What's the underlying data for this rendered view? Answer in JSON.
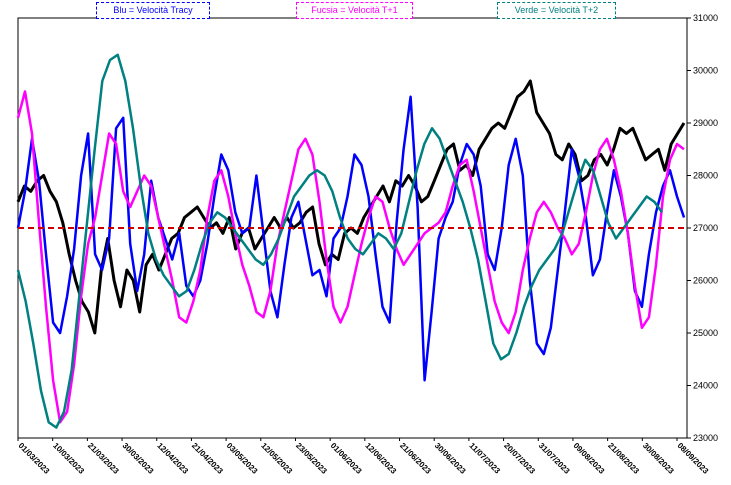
{
  "chart_data": {
    "type": "line",
    "legend": [
      {
        "label": "Blu = Velocità Tracy",
        "color": "#0000ff"
      },
      {
        "label": "Fucsia = Velocità T+1",
        "color": "#ff00ff"
      },
      {
        "label": "Verde = Velocità T+2",
        "color": "#008080"
      }
    ],
    "ylim": [
      23000,
      31000
    ],
    "yticks": [
      23000,
      24000,
      25000,
      26000,
      27000,
      28000,
      29000,
      30000,
      31000
    ],
    "reference_line": {
      "value": 27000,
      "color": "#cc0000",
      "style": "dashed"
    },
    "x_tick_labels": [
      "01/03/2023",
      "10/03/2023",
      "21/03/2023",
      "30/03/2023",
      "12/04/2023",
      "21/04/2023",
      "03/05/2023",
      "12/05/2023",
      "23/05/2023",
      "01/06/2023",
      "12/06/2023",
      "21/06/2023",
      "30/06/2023",
      "11/07/2023",
      "20/07/2023",
      "31/07/2023",
      "09/08/2023",
      "21/08/2023",
      "30/08/2023",
      "08/09/2023"
    ],
    "series": [
      {
        "color": "#000000",
        "values": [
          27500,
          27800,
          27700,
          27900,
          28000,
          27700,
          27500,
          27100,
          26500,
          26000,
          25600,
          25400,
          25000,
          26200,
          26800,
          26000,
          25500,
          26200,
          26000,
          25400,
          26300,
          26500,
          26200,
          26500,
          26800,
          26900,
          27200,
          27300,
          27400,
          27200,
          27000,
          27100,
          26900,
          27200,
          26600,
          26900,
          27000,
          26600,
          26800,
          27000,
          27200,
          27000,
          27200,
          27000,
          27100,
          27300,
          27400,
          26700,
          26300,
          26500,
          26400,
          26900,
          27000,
          26900,
          27200,
          27400,
          27600,
          27800,
          27500,
          27900,
          27800,
          28000,
          27800,
          27500,
          27600,
          27900,
          28200,
          28500,
          28600,
          28100,
          28200,
          28000,
          28500,
          28700,
          28900,
          29000,
          28900,
          29200,
          29500,
          29600,
          29800,
          29200,
          29000,
          28800,
          28400,
          28300,
          28600,
          28400,
          27900,
          28000,
          28300,
          28400,
          28200,
          28500,
          28900,
          28800,
          28900,
          28600,
          28300,
          28400,
          28500,
          28100,
          28600,
          28800,
          29000
        ]
      },
      {
        "color": "#0000ff",
        "values": [
          27000,
          27700,
          28700,
          27900,
          26500,
          25200,
          25000,
          25700,
          26600,
          28000,
          28800,
          26500,
          26200,
          26800,
          28900,
          29100,
          26700,
          25800,
          26500,
          27900,
          27200,
          26800,
          26400,
          26900,
          25900,
          25700,
          26000,
          26700,
          27600,
          28400,
          28100,
          27300,
          26900,
          27000,
          28000,
          26900,
          25800,
          25300,
          26300,
          27200,
          27500,
          26800,
          26100,
          26200,
          25700,
          26800,
          27000,
          27600,
          28400,
          28200,
          27600,
          26500,
          25500,
          25200,
          27100,
          28500,
          29500,
          27400,
          24100,
          25400,
          26800,
          27200,
          27500,
          28200,
          28600,
          28400,
          27800,
          26500,
          26200,
          27000,
          28200,
          28700,
          28000,
          26000,
          24800,
          24600,
          25100,
          26200,
          27300,
          28500,
          28000,
          27200,
          26100,
          26400,
          27300,
          28100,
          27600,
          26900,
          25800,
          25500,
          26500,
          27300,
          27800,
          28100,
          27600,
          27200
        ]
      },
      {
        "color": "#ff00ff",
        "values": [
          29100,
          29600,
          28800,
          27100,
          25500,
          24100,
          23300,
          23500,
          24400,
          25700,
          26700,
          27200,
          28000,
          28800,
          28600,
          27700,
          27400,
          27700,
          28000,
          27800,
          27200,
          26600,
          26000,
          25300,
          25200,
          25600,
          26200,
          27200,
          27900,
          28100,
          27600,
          26900,
          26300,
          25900,
          25400,
          25300,
          25800,
          26700,
          27300,
          27900,
          28500,
          28700,
          28400,
          27500,
          26400,
          25500,
          25200,
          25500,
          26100,
          26700,
          27200,
          27600,
          27500,
          27000,
          26600,
          26300,
          26500,
          26700,
          26900,
          27000,
          27100,
          27300,
          27800,
          28200,
          28300,
          27700,
          27000,
          26300,
          25600,
          25200,
          25000,
          25400,
          26200,
          26800,
          27300,
          27500,
          27300,
          27000,
          26800,
          26500,
          26700,
          27300,
          28000,
          28500,
          28700,
          28300,
          27700,
          26900,
          25900,
          25100,
          25300,
          26300,
          27600,
          28300,
          28600,
          28500
        ]
      },
      {
        "color": "#008080",
        "values": [
          26200,
          25600,
          24800,
          23900,
          23300,
          23200,
          23500,
          24300,
          25700,
          27100,
          28500,
          29800,
          30200,
          30300,
          29800,
          28900,
          27800,
          26900,
          26400,
          26100,
          25900,
          25700,
          25800,
          26200,
          26700,
          27100,
          27300,
          27200,
          27000,
          26800,
          26600,
          26400,
          26300,
          26500,
          26800,
          27200,
          27600,
          27800,
          28000,
          28100,
          28000,
          27700,
          27200,
          26800,
          26600,
          26500,
          26700,
          26900,
          26800,
          26600,
          26900,
          27500,
          28100,
          28600,
          28900,
          28700,
          28300,
          27900,
          27500,
          27000,
          26400,
          25600,
          24800,
          24500,
          24600,
          25000,
          25500,
          25900,
          26200,
          26400,
          26600,
          26900,
          27400,
          27900,
          28300,
          28100,
          27600,
          27100,
          26800,
          27000,
          27200,
          27400,
          27600,
          27500,
          27300
        ]
      }
    ]
  }
}
